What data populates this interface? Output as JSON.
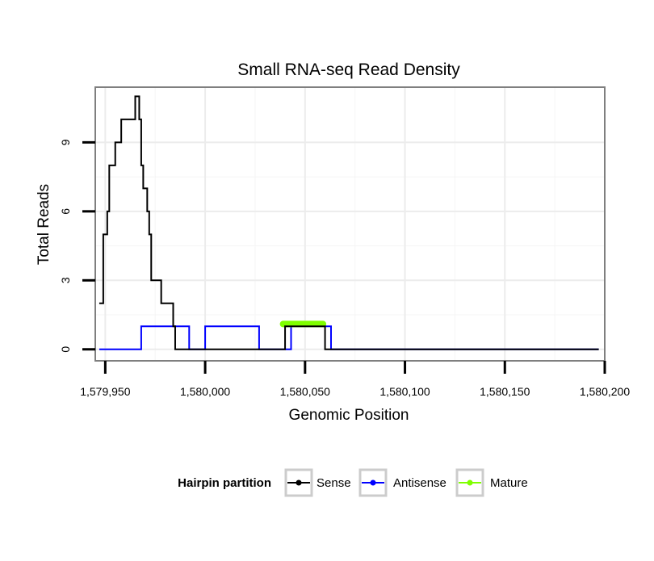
{
  "chart_data": {
    "type": "line",
    "title": "Small RNA-seq Read Density",
    "xlabel": "Genomic Position",
    "ylabel": "Total Reads",
    "xlim": [
      1579945,
      1580200
    ],
    "ylim": [
      -0.5,
      11.4
    ],
    "x_ticks": [
      1579950,
      1580000,
      1580050,
      1580100,
      1580150,
      1580200
    ],
    "x_tick_labels": [
      "1,579,950",
      "1,580,000",
      "1,580,050",
      "1,580,100",
      "1,580,150",
      "1,580,200"
    ],
    "y_ticks": [
      0,
      3,
      6,
      9
    ],
    "y_tick_labels": [
      "0",
      "3",
      "6",
      "9"
    ],
    "grid": true,
    "legend": {
      "title": "Hairpin partition",
      "position": "bottom",
      "entries": [
        "Sense",
        "Antisense",
        "Mature"
      ]
    },
    "series": [
      {
        "name": "Sense",
        "color": "#000000",
        "step": true,
        "x": [
          1579947,
          1579948,
          1579949,
          1579950,
          1579951,
          1579952,
          1579953,
          1579954,
          1579955,
          1579956,
          1579957,
          1579958,
          1579959,
          1579960,
          1579961,
          1579962,
          1579963,
          1579964,
          1579965,
          1579966,
          1579967,
          1579968,
          1579969,
          1579970,
          1579971,
          1579972,
          1579973,
          1579974,
          1579975,
          1579976,
          1579977,
          1579978,
          1579979,
          1579980,
          1579981,
          1579982,
          1579983,
          1579984,
          1579985,
          1579986,
          1579987,
          1579988,
          1579989,
          1579990,
          1580000,
          1580010,
          1580020,
          1580030,
          1580039,
          1580040,
          1580050,
          1580058,
          1580059,
          1580060,
          1580061,
          1580070,
          1580100,
          1580150,
          1580197
        ],
        "values": [
          2,
          2,
          5,
          5,
          6,
          8,
          8,
          8,
          9,
          9,
          9,
          10,
          10,
          10,
          10,
          10,
          10,
          10,
          11,
          11,
          10,
          8,
          7,
          7,
          6,
          5,
          3,
          3,
          3,
          3,
          3,
          2,
          2,
          2,
          2,
          2,
          2,
          1,
          0,
          0,
          0,
          0,
          0,
          0,
          0,
          0,
          0,
          0,
          0,
          1,
          1,
          1,
          1,
          0,
          0,
          0,
          0,
          0,
          0
        ]
      },
      {
        "name": "Antisense",
        "color": "#0000ff",
        "step": true,
        "x": [
          1579947,
          1579967,
          1579968,
          1579989,
          1579990,
          1579992,
          1579993,
          1579998,
          1579999,
          1580000,
          1580001,
          1580025,
          1580026,
          1580027,
          1580028,
          1580038,
          1580039,
          1580041,
          1580042,
          1580043,
          1580044,
          1580060,
          1580061,
          1580062,
          1580063,
          1580065,
          1580197
        ],
        "values": [
          0,
          0,
          1,
          1,
          1,
          0,
          0,
          0,
          0,
          1,
          1,
          1,
          1,
          0,
          0,
          0,
          0,
          0,
          0,
          1,
          1,
          1,
          1,
          1,
          0,
          0,
          0
        ]
      },
      {
        "name": "Mature",
        "color": "#7fff00",
        "step": false,
        "x": [
          1580039,
          1580059
        ],
        "values": [
          1.1,
          1.1
        ]
      }
    ]
  }
}
